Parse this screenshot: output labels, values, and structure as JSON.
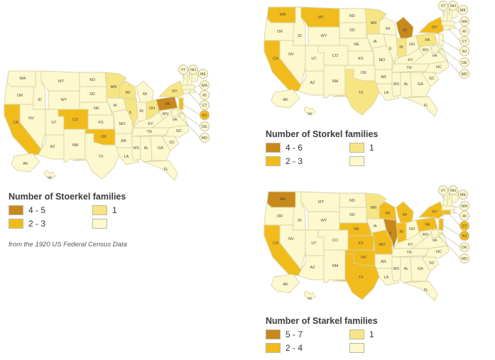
{
  "colors": {
    "range_high": "#c8881c",
    "range_mid": "#f2bb1c",
    "one": "#f7e583",
    "zero": "#fdf8cd",
    "border": "#d8d3a8"
  },
  "maps": [
    {
      "id": "stoerkel",
      "legend": {
        "title": "Number of Stoerkel families",
        "high": "4 - 5",
        "mid": "2 - 3",
        "one": "1",
        "zero": ""
      },
      "states": {
        "WA": "zero",
        "OR": "zero",
        "CA": "mid",
        "ID": "zero",
        "NV": "zero",
        "UT": "zero",
        "AZ": "zero",
        "MT": "zero",
        "WY": "zero",
        "CO": "mid",
        "NM": "zero",
        "ND": "zero",
        "SD": "zero",
        "NE": "zero",
        "KS": "zero",
        "OK": "mid",
        "TX": "zero",
        "MN": "one",
        "IA": "zero",
        "MO": "zero",
        "AR": "zero",
        "LA": "zero",
        "WI": "one",
        "IL": "one",
        "MI": "zero",
        "IN": "zero",
        "OH": "one",
        "KY": "zero",
        "TN": "zero",
        "MS": "zero",
        "AL": "zero",
        "GA": "zero",
        "FL": "zero",
        "SC": "zero",
        "NC": "zero",
        "VA": "zero",
        "WV": "zero",
        "PA": "high",
        "NY": "one",
        "ME": "zero",
        "VT": "zero",
        "NH": "zero",
        "MA": "zero",
        "RI": "zero",
        "CT": "zero",
        "NJ": "mid",
        "DE": "zero",
        "MD": "zero",
        "AK": "zero",
        "HI": "zero"
      }
    },
    {
      "id": "storkel",
      "legend": {
        "title": "Number of Storkel families",
        "high": "4 - 6",
        "mid": "2 - 3",
        "one": "1",
        "zero": ""
      },
      "states": {
        "WA": "mid",
        "OR": "zero",
        "CA": "mid",
        "ID": "zero",
        "NV": "zero",
        "UT": "zero",
        "AZ": "zero",
        "MT": "mid",
        "WY": "zero",
        "CO": "zero",
        "NM": "zero",
        "ND": "zero",
        "SD": "zero",
        "NE": "zero",
        "KS": "zero",
        "OK": "zero",
        "TX": "one",
        "MN": "one",
        "IA": "zero",
        "MO": "zero",
        "AR": "zero",
        "LA": "zero",
        "WI": "zero",
        "IL": "zero",
        "MI": "high",
        "IN": "one",
        "OH": "zero",
        "KY": "zero",
        "TN": "zero",
        "MS": "zero",
        "AL": "zero",
        "GA": "zero",
        "FL": "zero",
        "SC": "zero",
        "NC": "zero",
        "VA": "zero",
        "WV": "zero",
        "PA": "one",
        "NY": "mid",
        "ME": "zero",
        "VT": "zero",
        "NH": "zero",
        "MA": "zero",
        "RI": "zero",
        "CT": "zero",
        "NJ": "zero",
        "DE": "zero",
        "MD": "zero",
        "AK": "zero",
        "HI": "zero"
      }
    },
    {
      "id": "starkel",
      "legend": {
        "title": "Number of Starkel families",
        "high": "5 - 7",
        "mid": "2 - 4",
        "one": "1",
        "zero": ""
      },
      "states": {
        "WA": "high",
        "OR": "zero",
        "CA": "mid",
        "ID": "zero",
        "NV": "zero",
        "UT": "zero",
        "AZ": "zero",
        "MT": "zero",
        "WY": "zero",
        "CO": "zero",
        "NM": "zero",
        "ND": "zero",
        "SD": "zero",
        "NE": "mid",
        "KS": "mid",
        "OK": "mid",
        "TX": "mid",
        "MN": "one",
        "IA": "zero",
        "MO": "mid",
        "AR": "zero",
        "LA": "zero",
        "WI": "mid",
        "IL": "high",
        "MI": "mid",
        "IN": "mid",
        "OH": "zero",
        "KY": "zero",
        "TN": "zero",
        "MS": "zero",
        "AL": "zero",
        "GA": "zero",
        "FL": "zero",
        "SC": "zero",
        "NC": "zero",
        "VA": "zero",
        "WV": "zero",
        "PA": "mid",
        "NY": "mid",
        "ME": "zero",
        "VT": "zero",
        "NH": "zero",
        "MA": "zero",
        "RI": "zero",
        "CT": "mid",
        "NJ": "mid",
        "DE": "zero",
        "MD": "zero",
        "AK": "zero",
        "HI": "zero"
      }
    }
  ],
  "source_note": "from the 1920 US Federal Census Data"
}
